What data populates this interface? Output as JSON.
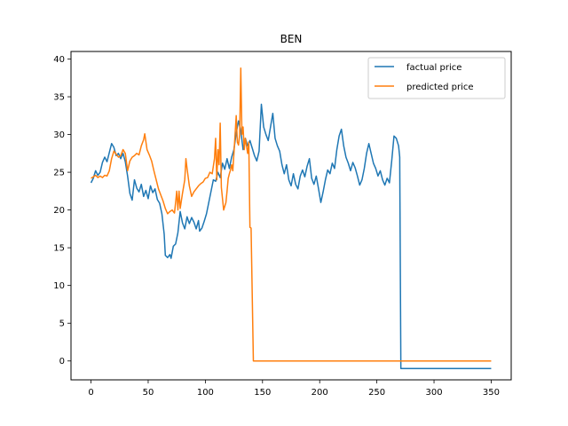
{
  "chart_data": {
    "type": "line",
    "title": "BEN",
    "xlabel": "",
    "ylabel": "",
    "xlim": [
      -17.5,
      367.5
    ],
    "ylim": [
      -2.5,
      41.0
    ],
    "xticks": [
      0,
      50,
      100,
      150,
      200,
      250,
      300,
      350
    ],
    "yticks": [
      0,
      5,
      10,
      15,
      20,
      25,
      30,
      35,
      40
    ],
    "grid": false,
    "legend_position": "upper right",
    "series": [
      {
        "name": "factual price",
        "color": "#1f77b4",
        "points": [
          [
            0,
            23.6
          ],
          [
            2,
            24.2
          ],
          [
            4,
            25.2
          ],
          [
            6,
            24.6
          ],
          [
            8,
            25.0
          ],
          [
            10,
            26.3
          ],
          [
            12,
            27.0
          ],
          [
            14,
            26.4
          ],
          [
            16,
            27.6
          ],
          [
            18,
            28.8
          ],
          [
            20,
            28.3
          ],
          [
            22,
            27.2
          ],
          [
            24,
            27.5
          ],
          [
            26,
            26.8
          ],
          [
            28,
            27.5
          ],
          [
            30,
            26.4
          ],
          [
            32,
            24.5
          ],
          [
            34,
            22.2
          ],
          [
            36,
            21.3
          ],
          [
            38,
            24.0
          ],
          [
            40,
            22.9
          ],
          [
            42,
            22.4
          ],
          [
            44,
            23.4
          ],
          [
            46,
            21.8
          ],
          [
            48,
            22.6
          ],
          [
            50,
            21.5
          ],
          [
            52,
            23.2
          ],
          [
            54,
            22.3
          ],
          [
            56,
            22.8
          ],
          [
            58,
            21.4
          ],
          [
            60,
            20.9
          ],
          [
            62,
            19.5
          ],
          [
            64,
            16.8
          ],
          [
            65,
            14.0
          ],
          [
            67,
            13.7
          ],
          [
            69,
            14.1
          ],
          [
            70,
            13.6
          ],
          [
            72,
            15.2
          ],
          [
            74,
            15.5
          ],
          [
            76,
            17.0
          ],
          [
            78,
            19.8
          ],
          [
            80,
            18.3
          ],
          [
            82,
            17.5
          ],
          [
            84,
            19.1
          ],
          [
            86,
            18.2
          ],
          [
            88,
            19.0
          ],
          [
            90,
            18.4
          ],
          [
            92,
            17.5
          ],
          [
            94,
            18.6
          ],
          [
            95,
            17.2
          ],
          [
            97,
            17.6
          ],
          [
            99,
            18.5
          ],
          [
            101,
            19.5
          ],
          [
            103,
            21.0
          ],
          [
            105,
            22.5
          ],
          [
            107,
            24.0
          ],
          [
            109,
            23.8
          ],
          [
            111,
            25.0
          ],
          [
            113,
            24.3
          ],
          [
            115,
            26.2
          ],
          [
            117,
            25.4
          ],
          [
            119,
            26.8
          ],
          [
            121,
            25.5
          ],
          [
            123,
            27.0
          ],
          [
            125,
            28.0
          ],
          [
            127,
            30.2
          ],
          [
            129,
            31.8
          ],
          [
            131,
            30.5
          ],
          [
            133,
            28.0
          ],
          [
            135,
            29.5
          ],
          [
            137,
            28.5
          ],
          [
            139,
            29.2
          ],
          [
            141,
            28.2
          ],
          [
            143,
            27.2
          ],
          [
            145,
            26.5
          ],
          [
            147,
            27.8
          ],
          [
            149,
            34.0
          ],
          [
            151,
            31.0
          ],
          [
            153,
            30.0
          ],
          [
            155,
            29.2
          ],
          [
            157,
            31.0
          ],
          [
            159,
            32.8
          ],
          [
            161,
            29.5
          ],
          [
            163,
            28.5
          ],
          [
            165,
            27.8
          ],
          [
            167,
            26.0
          ],
          [
            169,
            24.8
          ],
          [
            171,
            26.0
          ],
          [
            173,
            24.0
          ],
          [
            175,
            23.2
          ],
          [
            177,
            24.8
          ],
          [
            179,
            23.4
          ],
          [
            181,
            22.8
          ],
          [
            183,
            24.5
          ],
          [
            185,
            25.3
          ],
          [
            187,
            24.4
          ],
          [
            189,
            25.8
          ],
          [
            191,
            26.8
          ],
          [
            193,
            24.2
          ],
          [
            195,
            23.4
          ],
          [
            197,
            24.5
          ],
          [
            199,
            22.8
          ],
          [
            201,
            21.0
          ],
          [
            203,
            22.4
          ],
          [
            205,
            24.0
          ],
          [
            207,
            25.3
          ],
          [
            209,
            24.8
          ],
          [
            211,
            26.2
          ],
          [
            213,
            25.5
          ],
          [
            215,
            28.0
          ],
          [
            217,
            29.8
          ],
          [
            219,
            30.7
          ],
          [
            221,
            28.5
          ],
          [
            223,
            27.0
          ],
          [
            225,
            26.2
          ],
          [
            227,
            25.2
          ],
          [
            229,
            26.3
          ],
          [
            231,
            25.6
          ],
          [
            233,
            24.5
          ],
          [
            235,
            23.3
          ],
          [
            237,
            24.0
          ],
          [
            239,
            25.5
          ],
          [
            241,
            27.5
          ],
          [
            243,
            28.8
          ],
          [
            245,
            27.5
          ],
          [
            247,
            26.2
          ],
          [
            249,
            25.5
          ],
          [
            251,
            24.5
          ],
          [
            253,
            25.2
          ],
          [
            255,
            24.0
          ],
          [
            257,
            23.3
          ],
          [
            259,
            24.2
          ],
          [
            261,
            23.6
          ],
          [
            263,
            26.5
          ],
          [
            265,
            29.8
          ],
          [
            267,
            29.5
          ],
          [
            269,
            28.5
          ],
          [
            270,
            27.0
          ],
          [
            271,
            -1.0
          ],
          [
            350,
            -1.0
          ]
        ]
      },
      {
        "name": "predicted price",
        "color": "#ff7f0e",
        "points": [
          [
            0,
            24.2
          ],
          [
            2,
            24.4
          ],
          [
            4,
            24.6
          ],
          [
            6,
            24.3
          ],
          [
            8,
            24.5
          ],
          [
            10,
            24.3
          ],
          [
            12,
            24.6
          ],
          [
            14,
            24.5
          ],
          [
            16,
            25.2
          ],
          [
            18,
            26.8
          ],
          [
            20,
            27.8
          ],
          [
            22,
            27.4
          ],
          [
            24,
            27.0
          ],
          [
            26,
            27.2
          ],
          [
            28,
            28.0
          ],
          [
            30,
            27.5
          ],
          [
            32,
            25.2
          ],
          [
            34,
            26.5
          ],
          [
            36,
            27.0
          ],
          [
            38,
            27.2
          ],
          [
            40,
            27.5
          ],
          [
            42,
            27.3
          ],
          [
            44,
            28.5
          ],
          [
            46,
            29.3
          ],
          [
            47,
            30.1
          ],
          [
            49,
            28.0
          ],
          [
            51,
            27.3
          ],
          [
            53,
            26.5
          ],
          [
            55,
            25.2
          ],
          [
            57,
            24.0
          ],
          [
            59,
            22.8
          ],
          [
            61,
            22.0
          ],
          [
            63,
            21.2
          ],
          [
            65,
            20.2
          ],
          [
            67,
            19.5
          ],
          [
            69,
            19.8
          ],
          [
            71,
            20.0
          ],
          [
            73,
            19.6
          ],
          [
            74,
            21.0
          ],
          [
            75,
            22.5
          ],
          [
            76,
            20.0
          ],
          [
            77,
            22.5
          ],
          [
            78,
            20.2
          ],
          [
            80,
            22.2
          ],
          [
            82,
            24.0
          ],
          [
            83,
            26.8
          ],
          [
            84,
            25.5
          ],
          [
            86,
            23.2
          ],
          [
            88,
            21.8
          ],
          [
            90,
            22.4
          ],
          [
            92,
            22.8
          ],
          [
            94,
            23.2
          ],
          [
            96,
            23.5
          ],
          [
            98,
            23.7
          ],
          [
            100,
            24.2
          ],
          [
            102,
            24.3
          ],
          [
            104,
            25.0
          ],
          [
            106,
            24.8
          ],
          [
            108,
            26.8
          ],
          [
            109,
            29.5
          ],
          [
            110,
            24.0
          ],
          [
            111,
            28.0
          ],
          [
            112,
            26.0
          ],
          [
            113,
            31.5
          ],
          [
            114,
            23.0
          ],
          [
            115,
            21.5
          ],
          [
            116,
            20.0
          ],
          [
            117,
            20.5
          ],
          [
            118,
            21.0
          ],
          [
            119,
            22.5
          ],
          [
            120,
            24.2
          ],
          [
            121,
            24.8
          ],
          [
            122,
            25.3
          ],
          [
            123,
            26.0
          ],
          [
            124,
            25.2
          ],
          [
            125,
            27.5
          ],
          [
            126,
            30.0
          ],
          [
            127,
            32.5
          ],
          [
            128,
            29.0
          ],
          [
            129,
            28.6
          ],
          [
            130,
            30.0
          ],
          [
            131,
            38.8
          ],
          [
            132,
            30.0
          ],
          [
            133,
            31.0
          ],
          [
            134,
            28.0
          ],
          [
            135,
            29.5
          ],
          [
            137,
            27.5
          ],
          [
            138,
            29.0
          ],
          [
            139,
            17.7
          ],
          [
            140,
            17.6
          ],
          [
            142,
            0.0
          ],
          [
            350,
            0.0
          ]
        ]
      }
    ]
  }
}
